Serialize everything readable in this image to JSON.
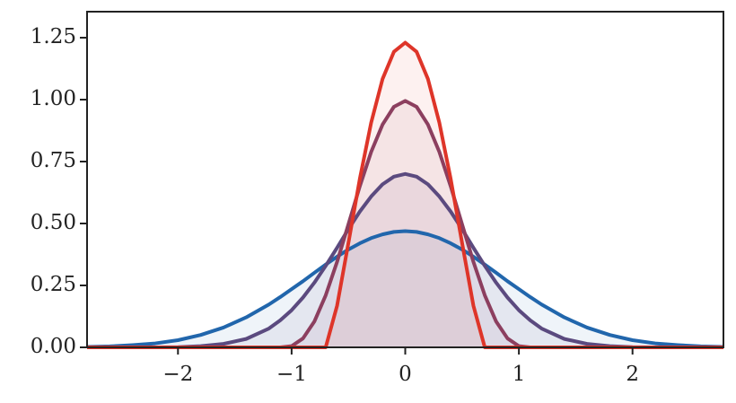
{
  "chart_data": {
    "type": "line",
    "x": [
      -2.8,
      -2.6,
      -2.4,
      -2.2,
      -2.0,
      -1.8,
      -1.6,
      -1.4,
      -1.2,
      -1.1,
      -1.0,
      -0.9,
      -0.8,
      -0.7,
      -0.6,
      -0.5,
      -0.4,
      -0.3,
      -0.2,
      -0.1,
      0,
      0.1,
      0.2,
      0.3,
      0.4,
      0.5,
      0.6,
      0.7,
      0.8,
      0.9,
      1.0,
      1.1,
      1.2,
      1.4,
      1.6,
      1.8,
      2.0,
      2.2,
      2.4,
      2.6,
      2.8
    ],
    "series": [
      {
        "color": "#2166ac",
        "values": [
          0.002,
          0.004,
          0.009,
          0.016,
          0.029,
          0.05,
          0.08,
          0.121,
          0.173,
          0.203,
          0.235,
          0.267,
          0.301,
          0.334,
          0.366,
          0.395,
          0.42,
          0.441,
          0.456,
          0.466,
          0.469,
          0.466,
          0.456,
          0.441,
          0.42,
          0.395,
          0.366,
          0.334,
          0.301,
          0.267,
          0.235,
          0.203,
          0.173,
          0.121,
          0.08,
          0.05,
          0.029,
          0.016,
          0.009,
          0.004,
          0.002
        ]
      },
      {
        "color": "#5b4a7f",
        "values": [
          0,
          0,
          0,
          0,
          0.001,
          0.005,
          0.014,
          0.034,
          0.076,
          0.109,
          0.15,
          0.201,
          0.261,
          0.329,
          0.402,
          0.477,
          0.548,
          0.609,
          0.658,
          0.689,
          0.7,
          0.689,
          0.658,
          0.609,
          0.548,
          0.477,
          0.402,
          0.329,
          0.261,
          0.201,
          0.15,
          0.109,
          0.076,
          0.034,
          0.014,
          0.005,
          0.001,
          0,
          0,
          0,
          0
        ]
      },
      {
        "color": "#8c3f5f",
        "values": [
          0,
          0,
          0,
          0,
          0,
          0,
          0,
          0,
          0,
          0,
          0.005,
          0.036,
          0.104,
          0.21,
          0.345,
          0.497,
          0.65,
          0.789,
          0.899,
          0.971,
          0.995,
          0.971,
          0.899,
          0.789,
          0.65,
          0.497,
          0.345,
          0.21,
          0.104,
          0.036,
          0.005,
          0,
          0,
          0,
          0,
          0,
          0,
          0,
          0,
          0,
          0
        ]
      },
      {
        "color": "#de3529",
        "values": [
          0,
          0,
          0,
          0,
          0,
          0,
          0,
          0,
          0,
          0,
          0,
          0,
          0,
          0,
          0.168,
          0.422,
          0.68,
          0.907,
          1.083,
          1.193,
          1.23,
          1.193,
          1.083,
          0.907,
          0.68,
          0.422,
          0.168,
          0,
          0,
          0,
          0,
          0,
          0,
          0,
          0,
          0,
          0,
          0,
          0,
          0,
          0
        ]
      }
    ],
    "xlim": [
      -2.8,
      2.8
    ],
    "ylim": [
      0,
      1.355
    ],
    "xticks": [
      {
        "value": -2,
        "label": "−2"
      },
      {
        "value": -1,
        "label": "−1"
      },
      0,
      1,
      2
    ],
    "yticks": [
      {
        "value": 0,
        "label": "0.00"
      },
      {
        "value": 0.25,
        "label": "0.25"
      },
      {
        "value": 0.5,
        "label": "0.50"
      },
      {
        "value": 0.75,
        "label": "0.75"
      },
      {
        "value": 1.0,
        "label": "1.00"
      },
      {
        "value": 1.25,
        "label": "1.25"
      }
    ],
    "fill": true
  }
}
